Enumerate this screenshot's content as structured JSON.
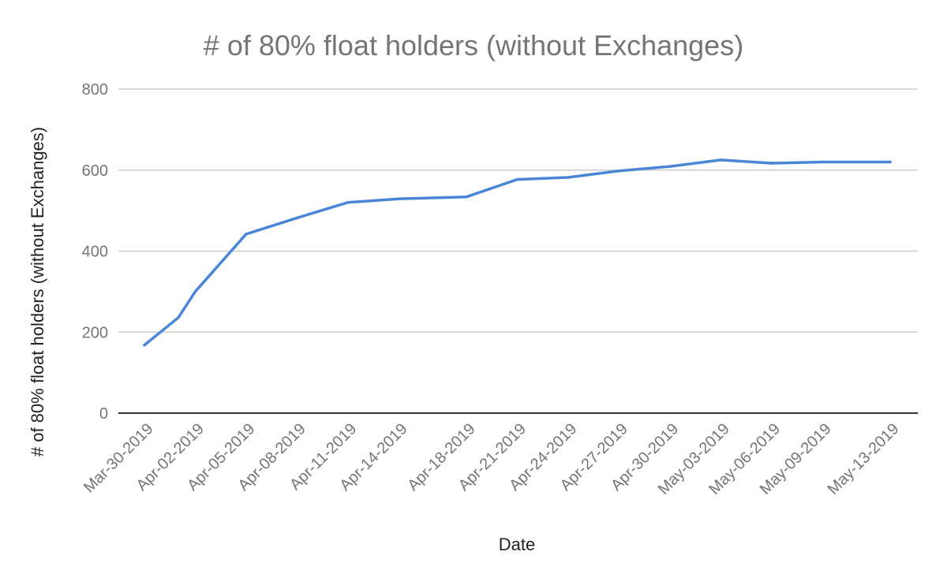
{
  "chart_data": {
    "type": "line",
    "title": "# of 80% float holders (without Exchanges)",
    "xlabel": "Date",
    "ylabel": "# of 80% float holders (without Exchanges)",
    "ylim": [
      0,
      800
    ],
    "y_ticks": [
      "0",
      "200",
      "400",
      "600",
      "800"
    ],
    "grid": true,
    "legend": "none",
    "x_tick_labels": [
      "Mar-30-2019",
      "Apr-02-2019",
      "Apr-05-2019",
      "Apr-08-2019",
      "Apr-11-2019",
      "Apr-14-2019",
      "Apr-18-2019",
      "Apr-21-2019",
      "Apr-24-2019",
      "Apr-27-2019",
      "Apr-30-2019",
      "May-03-2019",
      "May-06-2019",
      "May-09-2019",
      "May-13-2019"
    ],
    "x": [
      "Mar-30-2019",
      "Apr-01-2019",
      "Apr-02-2019",
      "Apr-05-2019",
      "Apr-08-2019",
      "Apr-11-2019",
      "Apr-14-2019",
      "Apr-18-2019",
      "Apr-21-2019",
      "Apr-24-2019",
      "Apr-27-2019",
      "Apr-30-2019",
      "May-03-2019",
      "May-06-2019",
      "May-09-2019",
      "May-13-2019"
    ],
    "series": [
      {
        "color": "#4a86d8",
        "values": [
          168,
          236,
          300,
          442,
          482,
          520,
          529,
          534,
          577,
          582,
          598,
          609,
          625,
          617,
          620,
          620
        ]
      }
    ]
  }
}
